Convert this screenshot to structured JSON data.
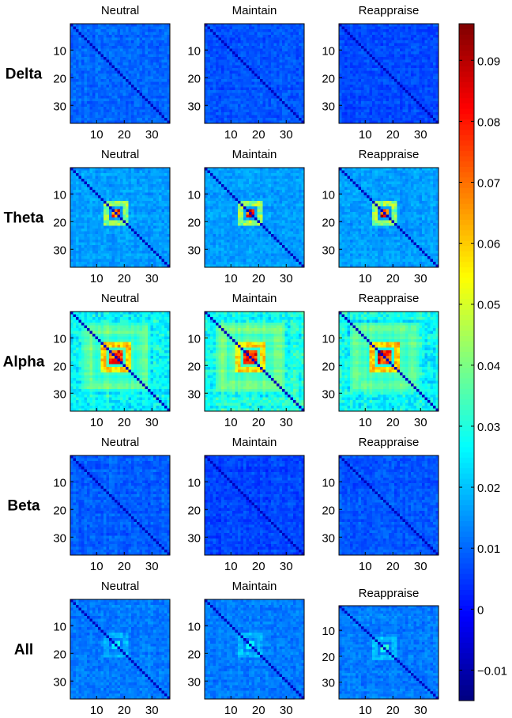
{
  "chart_data": {
    "type": "heatmap",
    "matrix_size": 36,
    "row_labels": [
      "Delta",
      "Theta",
      "Alpha",
      "Beta",
      "All"
    ],
    "column_titles": [
      "Neutral",
      "Maintain",
      "Reappraise"
    ],
    "tick_labels": [
      "10",
      "20",
      "30"
    ],
    "tick_values": [
      10,
      20,
      30
    ],
    "colormap": "jet",
    "colorbar": {
      "min": -0.015,
      "max": 0.096,
      "ticks": [
        -0.01,
        0,
        0.01,
        0.02,
        0.03,
        0.04,
        0.05,
        0.06,
        0.07,
        0.08,
        0.09
      ],
      "tick_labels": [
        "−0.01",
        "0",
        "0.01",
        "0.02",
        "0.03",
        "0.04",
        "0.05",
        "0.06",
        "0.07",
        "0.08",
        "0.09"
      ]
    },
    "approx_panel_stats": {
      "Delta": {
        "Neutral": {
          "base": 0.01,
          "peak": 0.014
        },
        "Maintain": {
          "base": 0.008,
          "peak": 0.012
        },
        "Reappraise": {
          "base": 0.007,
          "peak": 0.011
        }
      },
      "Theta": {
        "Neutral": {
          "base": 0.016,
          "peak": 0.092
        },
        "Maintain": {
          "base": 0.016,
          "peak": 0.092
        },
        "Reappraise": {
          "base": 0.016,
          "peak": 0.094
        }
      },
      "Alpha": {
        "Neutral": {
          "base": 0.03,
          "peak": 0.095
        },
        "Maintain": {
          "base": 0.032,
          "peak": 0.09
        },
        "Reappraise": {
          "base": 0.03,
          "peak": 0.096
        }
      },
      "Beta": {
        "Neutral": {
          "base": 0.009,
          "peak": 0.012
        },
        "Maintain": {
          "base": 0.006,
          "peak": 0.01
        },
        "Reappraise": {
          "base": 0.008,
          "peak": 0.011
        }
      },
      "All": {
        "Neutral": {
          "base": 0.012,
          "peak": 0.03
        },
        "Maintain": {
          "base": 0.012,
          "peak": 0.03
        },
        "Reappraise": {
          "base": 0.012,
          "peak": 0.032
        }
      }
    },
    "diagonal_value": -0.008
  }
}
